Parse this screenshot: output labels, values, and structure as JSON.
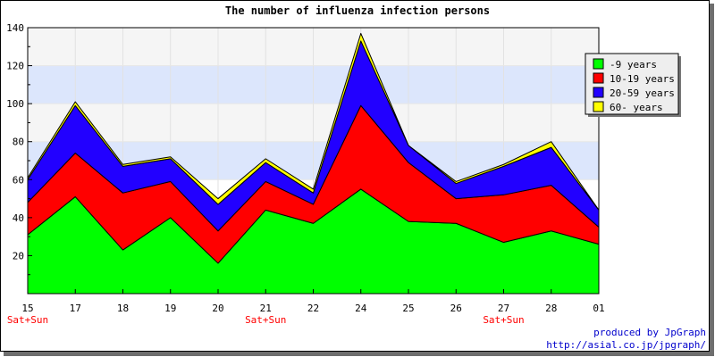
{
  "chart_data": {
    "type": "area",
    "stacked": true,
    "title": "The number of influenza infection persons",
    "xlabel": "",
    "ylabel": "",
    "ylim": [
      0,
      140
    ],
    "yticks": [
      20,
      40,
      60,
      80,
      100,
      120,
      140
    ],
    "categories": [
      "15",
      "17",
      "18",
      "19",
      "20",
      "21",
      "22",
      "24",
      "25",
      "26",
      "27",
      "28",
      "01"
    ],
    "sublabels": [
      "Sat+Sun",
      "",
      "",
      "",
      "",
      "Sat+Sun",
      "",
      "",
      "",
      "",
      "Sat+Sun",
      "",
      ""
    ],
    "grid": true,
    "legend_position": "right",
    "series": [
      {
        "name": "-9 years",
        "color": "#00ff00",
        "values": [
          31,
          51,
          23,
          40,
          16,
          44,
          37,
          55,
          38,
          37,
          27,
          33,
          26
        ]
      },
      {
        "name": "10-19 years",
        "color": "#ff0000",
        "values": [
          17,
          23,
          30,
          19,
          17,
          15,
          10,
          44,
          31,
          13,
          25,
          24,
          9
        ]
      },
      {
        "name": "20-59 years",
        "color": "#2200ff",
        "values": [
          12,
          25,
          14,
          12,
          14,
          10,
          6,
          34,
          9,
          8,
          15,
          20,
          9
        ]
      },
      {
        "name": "60- years",
        "color": "#ffff00",
        "values": [
          1,
          2,
          1,
          1,
          3,
          2,
          2,
          4,
          0,
          1,
          1,
          3,
          0
        ]
      }
    ]
  },
  "credit": {
    "line1": "produced by JpGraph",
    "line2": "http://asial.co.jp/jpgraph/"
  }
}
